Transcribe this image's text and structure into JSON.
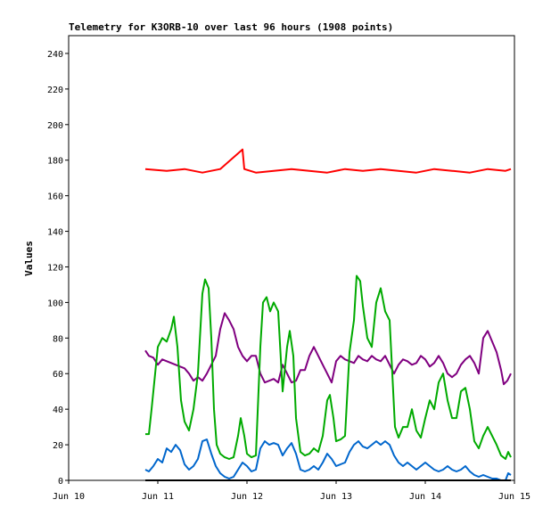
{
  "chart_data": {
    "type": "line",
    "title": "Telemetry for K3ORB-10 over last 96 hours (1908 points)",
    "xlabel": "",
    "ylabel": "Values",
    "ylim": [
      0,
      250
    ],
    "yticks": [
      0,
      20,
      40,
      60,
      80,
      100,
      120,
      140,
      160,
      180,
      200,
      220,
      240
    ],
    "xlim": [
      "Jun 10",
      "Jun 15"
    ],
    "xticks": [
      "Jun 10",
      "Jun 11",
      "Jun 12",
      "Jun 13",
      "Jun 14",
      "Jun 15"
    ],
    "grid": false,
    "legend": "none",
    "series": [
      {
        "color": "#ff0000",
        "points": [
          [
            10.86,
            175
          ],
          [
            11.1,
            174
          ],
          [
            11.3,
            175
          ],
          [
            11.5,
            173
          ],
          [
            11.7,
            175
          ],
          [
            11.95,
            186
          ],
          [
            11.97,
            175
          ],
          [
            12.1,
            173
          ],
          [
            12.3,
            174
          ],
          [
            12.5,
            175
          ],
          [
            12.7,
            174
          ],
          [
            12.9,
            173
          ],
          [
            13.1,
            175
          ],
          [
            13.3,
            174
          ],
          [
            13.5,
            175
          ],
          [
            13.7,
            174
          ],
          [
            13.9,
            173
          ],
          [
            14.1,
            175
          ],
          [
            14.3,
            174
          ],
          [
            14.5,
            173
          ],
          [
            14.7,
            175
          ],
          [
            14.9,
            174
          ],
          [
            14.96,
            175
          ]
        ]
      },
      {
        "color": "#800080",
        "points": [
          [
            10.86,
            73
          ],
          [
            10.9,
            70
          ],
          [
            10.95,
            69
          ],
          [
            11.0,
            65
          ],
          [
            11.05,
            68
          ],
          [
            11.1,
            67
          ],
          [
            11.15,
            66
          ],
          [
            11.2,
            65
          ],
          [
            11.25,
            64
          ],
          [
            11.3,
            63
          ],
          [
            11.35,
            60
          ],
          [
            11.4,
            56
          ],
          [
            11.45,
            58
          ],
          [
            11.5,
            56
          ],
          [
            11.55,
            60
          ],
          [
            11.6,
            65
          ],
          [
            11.65,
            70
          ],
          [
            11.7,
            85
          ],
          [
            11.75,
            94
          ],
          [
            11.8,
            90
          ],
          [
            11.85,
            85
          ],
          [
            11.9,
            75
          ],
          [
            11.95,
            70
          ],
          [
            12.0,
            67
          ],
          [
            12.05,
            70
          ],
          [
            12.1,
            70
          ],
          [
            12.15,
            60
          ],
          [
            12.2,
            55
          ],
          [
            12.25,
            56
          ],
          [
            12.3,
            57
          ],
          [
            12.35,
            55
          ],
          [
            12.4,
            65
          ],
          [
            12.45,
            60
          ],
          [
            12.5,
            55
          ],
          [
            12.55,
            56
          ],
          [
            12.6,
            62
          ],
          [
            12.65,
            62
          ],
          [
            12.7,
            70
          ],
          [
            12.75,
            75
          ],
          [
            12.8,
            70
          ],
          [
            12.85,
            65
          ],
          [
            12.9,
            60
          ],
          [
            12.95,
            55
          ],
          [
            13.0,
            67
          ],
          [
            13.05,
            70
          ],
          [
            13.1,
            68
          ],
          [
            13.15,
            67
          ],
          [
            13.2,
            66
          ],
          [
            13.25,
            70
          ],
          [
            13.3,
            68
          ],
          [
            13.35,
            67
          ],
          [
            13.4,
            70
          ],
          [
            13.45,
            68
          ],
          [
            13.5,
            67
          ],
          [
            13.55,
            70
          ],
          [
            13.6,
            65
          ],
          [
            13.65,
            60
          ],
          [
            13.7,
            65
          ],
          [
            13.75,
            68
          ],
          [
            13.8,
            67
          ],
          [
            13.85,
            65
          ],
          [
            13.9,
            66
          ],
          [
            13.95,
            70
          ],
          [
            14.0,
            68
          ],
          [
            14.05,
            64
          ],
          [
            14.1,
            66
          ],
          [
            14.15,
            70
          ],
          [
            14.2,
            66
          ],
          [
            14.25,
            60
          ],
          [
            14.3,
            58
          ],
          [
            14.35,
            60
          ],
          [
            14.4,
            65
          ],
          [
            14.45,
            68
          ],
          [
            14.5,
            70
          ],
          [
            14.55,
            66
          ],
          [
            14.6,
            60
          ],
          [
            14.65,
            80
          ],
          [
            14.7,
            84
          ],
          [
            14.75,
            78
          ],
          [
            14.8,
            72
          ],
          [
            14.85,
            62
          ],
          [
            14.88,
            54
          ],
          [
            14.92,
            56
          ],
          [
            14.96,
            60
          ]
        ]
      },
      {
        "color": "#00aa00",
        "points": [
          [
            10.86,
            26
          ],
          [
            10.9,
            26
          ],
          [
            10.93,
            40
          ],
          [
            10.96,
            55
          ],
          [
            11.0,
            75
          ],
          [
            11.05,
            80
          ],
          [
            11.1,
            78
          ],
          [
            11.15,
            85
          ],
          [
            11.18,
            92
          ],
          [
            11.22,
            75
          ],
          [
            11.26,
            45
          ],
          [
            11.3,
            33
          ],
          [
            11.35,
            28
          ],
          [
            11.4,
            40
          ],
          [
            11.45,
            60
          ],
          [
            11.5,
            105
          ],
          [
            11.53,
            113
          ],
          [
            11.57,
            108
          ],
          [
            11.6,
            80
          ],
          [
            11.63,
            40
          ],
          [
            11.66,
            20
          ],
          [
            11.7,
            15
          ],
          [
            11.75,
            13
          ],
          [
            11.8,
            12
          ],
          [
            11.85,
            13
          ],
          [
            11.9,
            25
          ],
          [
            11.93,
            35
          ],
          [
            11.97,
            25
          ],
          [
            12.0,
            15
          ],
          [
            12.05,
            13
          ],
          [
            12.1,
            14
          ],
          [
            12.15,
            75
          ],
          [
            12.18,
            100
          ],
          [
            12.22,
            103
          ],
          [
            12.26,
            95
          ],
          [
            12.3,
            100
          ],
          [
            12.35,
            95
          ],
          [
            12.4,
            50
          ],
          [
            12.45,
            75
          ],
          [
            12.48,
            84
          ],
          [
            12.52,
            70
          ],
          [
            12.55,
            35
          ],
          [
            12.6,
            16
          ],
          [
            12.65,
            14
          ],
          [
            12.7,
            15
          ],
          [
            12.75,
            18
          ],
          [
            12.8,
            16
          ],
          [
            12.85,
            25
          ],
          [
            12.9,
            45
          ],
          [
            12.93,
            48
          ],
          [
            12.97,
            35
          ],
          [
            13.0,
            22
          ],
          [
            13.05,
            23
          ],
          [
            13.1,
            25
          ],
          [
            13.15,
            72
          ],
          [
            13.2,
            90
          ],
          [
            13.23,
            115
          ],
          [
            13.27,
            112
          ],
          [
            13.3,
            98
          ],
          [
            13.35,
            80
          ],
          [
            13.4,
            75
          ],
          [
            13.45,
            100
          ],
          [
            13.5,
            108
          ],
          [
            13.55,
            95
          ],
          [
            13.6,
            90
          ],
          [
            13.63,
            60
          ],
          [
            13.66,
            30
          ],
          [
            13.7,
            24
          ],
          [
            13.75,
            30
          ],
          [
            13.8,
            30
          ],
          [
            13.85,
            40
          ],
          [
            13.9,
            28
          ],
          [
            13.95,
            24
          ],
          [
            14.0,
            35
          ],
          [
            14.05,
            45
          ],
          [
            14.1,
            40
          ],
          [
            14.15,
            55
          ],
          [
            14.2,
            60
          ],
          [
            14.25,
            45
          ],
          [
            14.3,
            35
          ],
          [
            14.35,
            35
          ],
          [
            14.4,
            50
          ],
          [
            14.45,
            52
          ],
          [
            14.5,
            40
          ],
          [
            14.55,
            22
          ],
          [
            14.6,
            18
          ],
          [
            14.65,
            25
          ],
          [
            14.7,
            30
          ],
          [
            14.75,
            25
          ],
          [
            14.8,
            20
          ],
          [
            14.85,
            14
          ],
          [
            14.9,
            12
          ],
          [
            14.93,
            16
          ],
          [
            14.96,
            13
          ]
        ]
      },
      {
        "color": "#0066cc",
        "points": [
          [
            10.86,
            6
          ],
          [
            10.9,
            5
          ],
          [
            10.95,
            8
          ],
          [
            11.0,
            12
          ],
          [
            11.05,
            10
          ],
          [
            11.1,
            18
          ],
          [
            11.15,
            16
          ],
          [
            11.2,
            20
          ],
          [
            11.25,
            17
          ],
          [
            11.3,
            9
          ],
          [
            11.35,
            6
          ],
          [
            11.4,
            8
          ],
          [
            11.45,
            12
          ],
          [
            11.5,
            22
          ],
          [
            11.55,
            23
          ],
          [
            11.6,
            15
          ],
          [
            11.65,
            8
          ],
          [
            11.7,
            4
          ],
          [
            11.75,
            2
          ],
          [
            11.8,
            1
          ],
          [
            11.85,
            2
          ],
          [
            11.9,
            6
          ],
          [
            11.95,
            10
          ],
          [
            12.0,
            8
          ],
          [
            12.05,
            5
          ],
          [
            12.1,
            6
          ],
          [
            12.15,
            18
          ],
          [
            12.2,
            22
          ],
          [
            12.25,
            20
          ],
          [
            12.3,
            21
          ],
          [
            12.35,
            20
          ],
          [
            12.4,
            14
          ],
          [
            12.45,
            18
          ],
          [
            12.5,
            21
          ],
          [
            12.55,
            15
          ],
          [
            12.6,
            6
          ],
          [
            12.65,
            5
          ],
          [
            12.7,
            6
          ],
          [
            12.75,
            8
          ],
          [
            12.8,
            6
          ],
          [
            12.85,
            10
          ],
          [
            12.9,
            15
          ],
          [
            12.95,
            12
          ],
          [
            13.0,
            8
          ],
          [
            13.05,
            9
          ],
          [
            13.1,
            10
          ],
          [
            13.15,
            16
          ],
          [
            13.2,
            20
          ],
          [
            13.25,
            22
          ],
          [
            13.3,
            19
          ],
          [
            13.35,
            18
          ],
          [
            13.4,
            20
          ],
          [
            13.45,
            22
          ],
          [
            13.5,
            20
          ],
          [
            13.55,
            22
          ],
          [
            13.6,
            20
          ],
          [
            13.65,
            14
          ],
          [
            13.7,
            10
          ],
          [
            13.75,
            8
          ],
          [
            13.8,
            10
          ],
          [
            13.85,
            8
          ],
          [
            13.9,
            6
          ],
          [
            13.95,
            8
          ],
          [
            14.0,
            10
          ],
          [
            14.05,
            8
          ],
          [
            14.1,
            6
          ],
          [
            14.15,
            5
          ],
          [
            14.2,
            6
          ],
          [
            14.25,
            8
          ],
          [
            14.3,
            6
          ],
          [
            14.35,
            5
          ],
          [
            14.4,
            6
          ],
          [
            14.45,
            8
          ],
          [
            14.5,
            5
          ],
          [
            14.55,
            3
          ],
          [
            14.6,
            2
          ],
          [
            14.65,
            3
          ],
          [
            14.7,
            2
          ],
          [
            14.75,
            1
          ],
          [
            14.8,
            1
          ],
          [
            14.85,
            0
          ],
          [
            14.9,
            0
          ],
          [
            14.93,
            4
          ],
          [
            14.96,
            3
          ]
        ]
      },
      {
        "color": "#000000",
        "points": [
          [
            10.86,
            0
          ],
          [
            14.96,
            0
          ]
        ]
      }
    ]
  }
}
